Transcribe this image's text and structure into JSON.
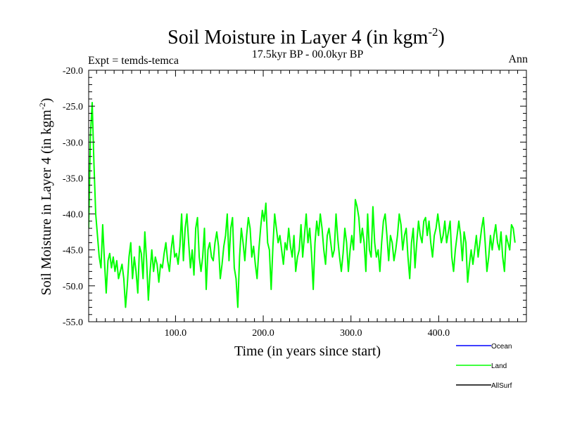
{
  "chart_data": {
    "type": "line",
    "title": "Soil Moisture in Layer 4 (in kgm",
    "title_sup": "-2",
    "title_close": ")",
    "subtitle": "17.5kyr BP - 00.0kyr BP",
    "expt_label": "Expt = temds-temca",
    "period_label": "Ann",
    "xlabel": "Time (in years since start)",
    "ylabel": "Soil Moisture in Layer 4 (in kgm",
    "ylabel_sup": "-2",
    "ylabel_close": ")",
    "xlim": [
      1,
      500
    ],
    "ylim": [
      -55,
      -20
    ],
    "x_ticks": [
      100,
      200,
      300,
      400
    ],
    "x_tick_labels": [
      "100.0",
      "200.0",
      "300.0",
      "400.0"
    ],
    "y_ticks": [
      -20,
      -25,
      -30,
      -35,
      -40,
      -45,
      -50,
      -55
    ],
    "y_tick_labels": [
      "-20.0",
      "-25.0",
      "-30.0",
      "-35.0",
      "-40.0",
      "-45.0",
      "-50.0",
      "-55.0"
    ],
    "legend": [
      {
        "name": "Ocean",
        "color": "#0000ff"
      },
      {
        "name": "Land",
        "color": "#00ff00"
      },
      {
        "name": "AllSurf",
        "color": "#000000"
      }
    ],
    "series": [
      {
        "name": "Land",
        "color": "#00ff00",
        "x_start": 1,
        "x_step": 2,
        "values": [
          -42,
          -29,
          -24.5,
          -33,
          -40,
          -43,
          -46,
          -47.5,
          -41.5,
          -46.5,
          -51,
          -46.5,
          -45.5,
          -47.5,
          -46,
          -48,
          -46.5,
          -49,
          -48,
          -47,
          -49,
          -53,
          -50,
          -46,
          -44,
          -49,
          -46,
          -48,
          -51,
          -44.5,
          -45.5,
          -49,
          -42.5,
          -46.5,
          -52,
          -48,
          -45,
          -48,
          -46,
          -47,
          -49.5,
          -47,
          -47.5,
          -45.5,
          -44,
          -46.5,
          -48,
          -45,
          -43,
          -46,
          -45.5,
          -47,
          -44.5,
          -40,
          -46.5,
          -42,
          -40,
          -44,
          -47.5,
          -45,
          -48.5,
          -42,
          -40.5,
          -46,
          -48,
          -46,
          -42,
          -50.5,
          -45,
          -44,
          -46,
          -46.5,
          -44,
          -42.5,
          -44.5,
          -49,
          -47,
          -44.5,
          -43,
          -40,
          -46.5,
          -42,
          -40.5,
          -47.5,
          -49,
          -53,
          -46,
          -42,
          -44,
          -46.5,
          -43,
          -40.5,
          -42,
          -46,
          -44.5,
          -47,
          -49,
          -45,
          -42,
          -39.5,
          -41,
          -38.5,
          -44,
          -45,
          -50.5,
          -44.5,
          -40,
          -42,
          -44,
          -43,
          -45,
          -47,
          -44,
          -45,
          -42,
          -44.5,
          -46,
          -43,
          -48,
          -46,
          -45,
          -41.5,
          -46,
          -43,
          -40,
          -44,
          -42,
          -45.5,
          -50.5,
          -44,
          -41,
          -43,
          -40,
          -42,
          -45,
          -47,
          -43,
          -42,
          -44,
          -46,
          -45,
          -40,
          -43.5,
          -46,
          -48,
          -45.5,
          -42,
          -44,
          -48,
          -45,
          -43,
          -45,
          -38,
          -39,
          -40.5,
          -44,
          -42,
          -44,
          -48,
          -40,
          -45,
          -46,
          -39,
          -44,
          -46,
          -45,
          -48,
          -44,
          -41,
          -40,
          -43,
          -46.5,
          -43,
          -44,
          -46.5,
          -45,
          -43,
          -40,
          -41.5,
          -45,
          -43,
          -42,
          -46,
          -49,
          -44,
          -42,
          -47.5,
          -44,
          -41,
          -43,
          -44,
          -41,
          -40.5,
          -43,
          -41,
          -44,
          -46,
          -43,
          -42,
          -40,
          -42,
          -44,
          -43,
          -41,
          -44,
          -42.5,
          -41,
          -46,
          -48,
          -45,
          -43,
          -41,
          -43,
          -46.5,
          -42.5,
          -44,
          -49.5,
          -47,
          -45,
          -47,
          -45,
          -43,
          -46,
          -44,
          -42,
          -40.5,
          -44,
          -48,
          -46,
          -43,
          -45,
          -43,
          -41.5,
          -44,
          -45,
          -42.5,
          -46,
          -48,
          -43,
          -44,
          -45,
          -41.5,
          -42,
          -44
        ]
      }
    ]
  }
}
